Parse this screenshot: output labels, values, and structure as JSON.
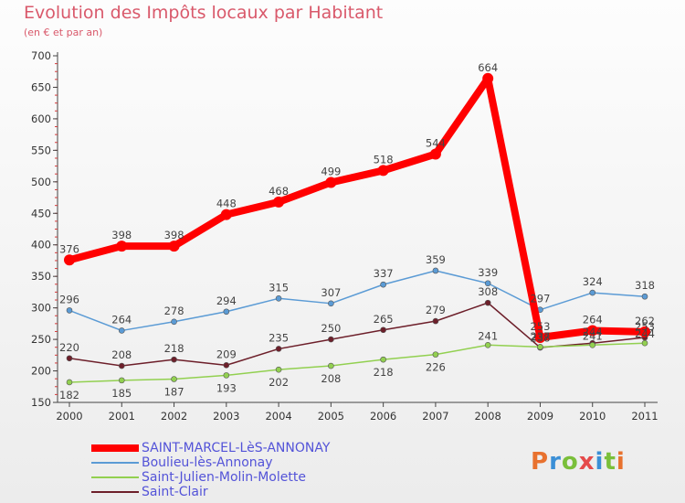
{
  "header": {
    "title": "Evolution des Impôts locaux par Habitant",
    "subtitle": "(en € et par an)"
  },
  "brand": {
    "letters": [
      "P",
      "r",
      "o",
      "x",
      "i",
      "t",
      "i"
    ],
    "colors": [
      "#e8712e",
      "#3b8fd6",
      "#7abf3a",
      "#e54a4a",
      "#3b8fd6",
      "#7abf3a",
      "#e8712e"
    ]
  },
  "chart_data": {
    "type": "line",
    "x": [
      "2000",
      "2001",
      "2002",
      "2003",
      "2004",
      "2005",
      "2006",
      "2007",
      "2008",
      "2009",
      "2010",
      "2011"
    ],
    "ylim": [
      150,
      700
    ],
    "yticks": [
      150,
      200,
      250,
      300,
      350,
      400,
      450,
      500,
      550,
      600,
      650,
      700
    ],
    "grid": false,
    "legend_position": "bottom-left",
    "series": [
      {
        "name": "SAINT-MARCEL-LèS-ANNONAY",
        "color": "#ff0000",
        "values": [
          376,
          398,
          398,
          448,
          468,
          499,
          518,
          544,
          664,
          253,
          264,
          262
        ]
      },
      {
        "name": "Boulieu-lès-Annonay",
        "color": "#5b9bd5",
        "values": [
          296,
          264,
          278,
          294,
          315,
          307,
          337,
          359,
          339,
          297,
          324,
          318
        ]
      },
      {
        "name": "Saint-Julien-Molin-Molette",
        "color": "#92d050",
        "values": [
          182,
          185,
          187,
          193,
          202,
          208,
          218,
          226,
          241,
          238,
          241,
          244
        ]
      },
      {
        "name": "Saint-Clair",
        "color": "#6d1f2a",
        "values": [
          220,
          208,
          218,
          209,
          235,
          250,
          265,
          279,
          308,
          237,
          244,
          253
        ]
      }
    ]
  }
}
